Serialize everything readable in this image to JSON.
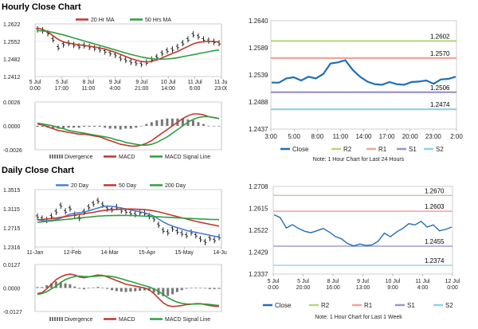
{
  "sections": {
    "hourly": "Hourly Close Chart",
    "daily": "Daily Close Chart"
  },
  "colors": {
    "ma_fast": "#c0392b",
    "ma_slow": "#2e9e3e",
    "ma20": "#4b7fcf",
    "ma50": "#c0392b",
    "ma200": "#2e9e3e",
    "price": "#111111",
    "close": "#1f6fb2",
    "r2": "#b5d77a",
    "r1": "#f2a39a",
    "s1": "#9b94c9",
    "s2": "#8fd0e8",
    "divergence": "#777777",
    "macd": "#c0392b",
    "signal": "#2e9e3e"
  },
  "chart_data": [
    {
      "id": "hourly_price",
      "type": "line",
      "legend": [
        "20 Hr MA",
        "50 Hrs MA"
      ],
      "ylim": [
        1.2412,
        1.2622
      ],
      "yticks": [
        "1.2622",
        "1.2552",
        "1.2482",
        "1.2412"
      ],
      "xticks": [
        "5 Jul\n0:00",
        "5 Jul\n17:00",
        "8 Jul\n11:00",
        "9 Jul\n4:00",
        "9 Jul\n21:00",
        "10 Jul\n14:00",
        "11 Jul\n6:00",
        "11 Jul\n23:00"
      ],
      "price": [
        1.26,
        1.2596,
        1.2585,
        1.256,
        1.2528,
        1.254,
        1.2545,
        1.2538,
        1.2532,
        1.2536,
        1.253,
        1.2525,
        1.252,
        1.2512,
        1.2505,
        1.2498,
        1.2485,
        1.2478,
        1.247,
        1.2466,
        1.2462,
        1.2468,
        1.248,
        1.249,
        1.2505,
        1.2515,
        1.252,
        1.253,
        1.2545,
        1.256,
        1.258,
        1.2572,
        1.256,
        1.2555,
        1.255,
        1.2545
      ],
      "series": [
        {
          "name": "20 Hr MA",
          "values": [
            1.2605,
            1.26,
            1.259,
            1.2575,
            1.256,
            1.255,
            1.2545,
            1.2542,
            1.2538,
            1.2536,
            1.2533,
            1.253,
            1.2526,
            1.2521,
            1.2515,
            1.2508,
            1.25,
            1.2492,
            1.2484,
            1.2477,
            1.2472,
            1.247,
            1.2472,
            1.2478,
            1.2486,
            1.2495,
            1.2504,
            1.2512,
            1.2522,
            1.2532,
            1.2542,
            1.2548,
            1.2551,
            1.2552,
            1.2551,
            1.255
          ]
        },
        {
          "name": "50 Hrs MA",
          "values": [
            1.2595,
            1.2594,
            1.2592,
            1.2588,
            1.2583,
            1.2578,
            1.2572,
            1.2566,
            1.256,
            1.2554,
            1.2548,
            1.2542,
            1.2536,
            1.253,
            1.2524,
            1.2518,
            1.2512,
            1.2506,
            1.25,
            1.2495,
            1.249,
            1.2486,
            1.2483,
            1.2481,
            1.2481,
            1.2482,
            1.2484,
            1.2487,
            1.2491,
            1.2495,
            1.2499,
            1.2503,
            1.2507,
            1.2511,
            1.2515,
            1.2518
          ]
        }
      ]
    },
    {
      "id": "hourly_macd",
      "type": "line",
      "legend": [
        "Divergence",
        "MACD",
        "MACD Signal Line"
      ],
      "ylim": [
        -0.0026,
        0.0026
      ],
      "yticks": [
        "0.0026",
        "0.0000",
        "-0.0026"
      ],
      "series": [
        {
          "name": "MACD",
          "values": [
            0.0002,
            0.0001,
            -0.0001,
            -0.0003,
            -0.0005,
            -0.0006,
            -0.0007,
            -0.0008,
            -0.0009,
            -0.0009,
            -0.001,
            -0.0011,
            -0.0012,
            -0.0014,
            -0.0016,
            -0.0018,
            -0.002,
            -0.0021,
            -0.0022,
            -0.0022,
            -0.0021,
            -0.0019,
            -0.0016,
            -0.0012,
            -0.0008,
            -0.0004,
            0.0,
            0.0004,
            0.0008,
            0.0011,
            0.0013,
            0.0013,
            0.0012,
            0.001,
            0.0009,
            0.0008
          ]
        },
        {
          "name": "MACD Signal Line",
          "values": [
            0.0003,
            0.0002,
            0.0001,
            0.0,
            -0.0002,
            -0.0003,
            -0.0005,
            -0.0006,
            -0.0007,
            -0.0008,
            -0.0009,
            -0.001,
            -0.0011,
            -0.0012,
            -0.0013,
            -0.0015,
            -0.0016,
            -0.0018,
            -0.0019,
            -0.002,
            -0.0021,
            -0.0021,
            -0.002,
            -0.0018,
            -0.0015,
            -0.0012,
            -0.0008,
            -0.0004,
            0.0,
            0.0004,
            0.0007,
            0.0009,
            0.001,
            0.001,
            0.0009,
            0.0008
          ]
        },
        {
          "name": "Divergence",
          "values": [
            -0.0001,
            -0.0001,
            -0.0002,
            -0.0003,
            -0.0003,
            -0.0003,
            -0.0002,
            -0.0002,
            -0.0002,
            -0.0001,
            -0.0001,
            -0.0001,
            -0.0001,
            -0.0002,
            -0.0003,
            -0.0003,
            -0.0004,
            -0.0003,
            -0.0003,
            -0.0002,
            0.0,
            0.0002,
            0.0004,
            0.0006,
            0.0007,
            0.0008,
            0.0008,
            0.0008,
            0.0008,
            0.0007,
            0.0006,
            0.0004,
            0.0002,
            0.0,
            0.0,
            0.0
          ]
        }
      ]
    },
    {
      "id": "hourly_levels",
      "type": "line",
      "ylim": [
        1.2437,
        1.264
      ],
      "yticks": [
        "1.2640",
        "1.2589",
        "1.2539",
        "1.2488",
        "1.2437"
      ],
      "xticks": [
        "3:00",
        "5:00",
        "8:00",
        "11:00",
        "14:00",
        "17:00",
        "20:00",
        "23:00",
        "2:00"
      ],
      "legend": [
        "Close",
        "R2",
        "R1",
        "S1",
        "S2"
      ],
      "levels": [
        {
          "name": "R2",
          "value": 1.2602,
          "label": "1.2602"
        },
        {
          "name": "R1",
          "value": 1.257,
          "label": "1.2570"
        },
        {
          "name": "S1",
          "value": 1.2506,
          "label": "1.2506"
        },
        {
          "name": "S2",
          "value": 1.2474,
          "label": "1.2474"
        }
      ],
      "series": [
        {
          "name": "Close",
          "values": [
            1.2524,
            1.2524,
            1.2532,
            1.2534,
            1.2528,
            1.2535,
            1.2532,
            1.254,
            1.256,
            1.2562,
            1.2566,
            1.2548,
            1.2535,
            1.2526,
            1.2521,
            1.252,
            1.2525,
            1.2521,
            1.252,
            1.2525,
            1.2526,
            1.2528,
            1.2522,
            1.253,
            1.2531,
            1.2535
          ]
        }
      ],
      "note": "Note: 1 Hour Chart for Last 24 Hours"
    },
    {
      "id": "daily_price",
      "type": "line",
      "legend": [
        "20 Day",
        "50 Day",
        "200 Day"
      ],
      "ylim": [
        1.2316,
        1.3515
      ],
      "yticks": [
        "1.3515",
        "1.3115",
        "1.2715",
        "1.2316"
      ],
      "xticks": [
        "11-Jan",
        "12-Feb",
        "14-Mar",
        "15-Apr",
        "15-May",
        "14-Jun"
      ],
      "price": [
        1.295,
        1.291,
        1.288,
        1.296,
        1.305,
        1.318,
        1.306,
        1.312,
        1.299,
        1.292,
        1.305,
        1.315,
        1.322,
        1.328,
        1.32,
        1.312,
        1.31,
        1.315,
        1.308,
        1.306,
        1.302,
        1.3,
        1.304,
        1.302,
        1.296,
        1.29,
        1.278,
        1.266,
        1.262,
        1.27,
        1.264,
        1.26,
        1.256,
        1.262,
        1.256,
        1.248,
        1.242,
        1.25,
        1.246,
        1.252
      ],
      "series": [
        {
          "name": "20 Day",
          "values": [
            1.288,
            1.287,
            1.286,
            1.287,
            1.289,
            1.292,
            1.296,
            1.3,
            1.302,
            1.303,
            1.305,
            1.307,
            1.31,
            1.313,
            1.316,
            1.317,
            1.3165,
            1.315,
            1.313,
            1.311,
            1.309,
            1.307,
            1.305,
            1.303,
            1.3,
            1.296,
            1.29,
            1.284,
            1.279,
            1.275,
            1.272,
            1.269,
            1.266,
            1.264,
            1.262,
            1.26,
            1.258,
            1.256,
            1.254,
            1.252
          ]
        },
        {
          "name": "50 Day",
          "values": [
            1.288,
            1.289,
            1.29,
            1.291,
            1.292,
            1.2935,
            1.295,
            1.2965,
            1.298,
            1.2995,
            1.301,
            1.3025,
            1.304,
            1.306,
            1.3075,
            1.3085,
            1.3095,
            1.31,
            1.3105,
            1.3108,
            1.311,
            1.3105,
            1.31,
            1.3095,
            1.3085,
            1.307,
            1.305,
            1.3025,
            1.3,
            1.2975,
            1.295,
            1.2925,
            1.29,
            1.2875,
            1.285,
            1.283,
            1.281,
            1.279,
            1.277,
            1.275
          ]
        },
        {
          "name": "200 Day",
          "values": [
            1.283,
            1.284,
            1.285,
            1.286,
            1.287,
            1.288,
            1.289,
            1.29,
            1.291,
            1.292,
            1.293,
            1.294,
            1.295,
            1.296,
            1.2965,
            1.297,
            1.2972,
            1.2975,
            1.2975,
            1.2975,
            1.2973,
            1.297,
            1.2965,
            1.296,
            1.2955,
            1.295,
            1.2945,
            1.294,
            1.2935,
            1.293,
            1.2925,
            1.292,
            1.2915,
            1.291,
            1.2905,
            1.29,
            1.2897,
            1.2893,
            1.289,
            1.2887
          ]
        }
      ]
    },
    {
      "id": "daily_macd",
      "type": "line",
      "legend": [
        "Divergence",
        "MACD",
        "MACD Signal Line"
      ],
      "ylim": [
        -0.0127,
        0.0127
      ],
      "yticks": [
        "0.0127",
        "0.0000",
        "-0.0127"
      ],
      "series": [
        {
          "name": "MACD",
          "values": [
            -0.003,
            -0.0025,
            -0.0005,
            0.002,
            0.0045,
            0.006,
            0.007,
            0.0075,
            0.007,
            0.006,
            0.0055,
            0.006,
            0.0065,
            0.007,
            0.0068,
            0.006,
            0.005,
            0.004,
            0.003,
            0.002,
            0.0015,
            0.001,
            0.0005,
            0.0,
            -0.001,
            -0.003,
            -0.0055,
            -0.008,
            -0.0095,
            -0.01,
            -0.0098,
            -0.0095,
            -0.009,
            -0.0088,
            -0.0085,
            -0.0085,
            -0.009,
            -0.0095,
            -0.0098,
            -0.01
          ]
        },
        {
          "name": "MACD Signal Line",
          "values": [
            -0.0035,
            -0.003,
            -0.002,
            -0.0005,
            0.001,
            0.003,
            0.0045,
            0.0055,
            0.0062,
            0.0064,
            0.0062,
            0.0061,
            0.0062,
            0.0064,
            0.0066,
            0.0065,
            0.0062,
            0.0057,
            0.005,
            0.0042,
            0.0035,
            0.0028,
            0.002,
            0.0013,
            0.0005,
            -0.0005,
            -0.0018,
            -0.0035,
            -0.0052,
            -0.0066,
            -0.0076,
            -0.0083,
            -0.0086,
            -0.0087,
            -0.0087,
            -0.0086,
            -0.0087,
            -0.0089,
            -0.0092,
            -0.0095
          ]
        },
        {
          "name": "Divergence",
          "values": [
            0.0005,
            0.0005,
            0.0015,
            0.0025,
            0.0035,
            0.003,
            0.0025,
            0.002,
            0.0008,
            -0.0004,
            -0.0007,
            -0.0001,
            0.0003,
            0.0006,
            0.0002,
            -0.0005,
            -0.0012,
            -0.0017,
            -0.002,
            -0.0022,
            -0.002,
            -0.0018,
            -0.0015,
            -0.0013,
            -0.0015,
            -0.0025,
            -0.0037,
            -0.0045,
            -0.0043,
            -0.0034,
            -0.0022,
            -0.0012,
            -0.0004,
            -0.0001,
            0.0002,
            0.0001,
            -0.0003,
            -0.0006,
            -0.0006,
            -0.0005
          ]
        }
      ]
    },
    {
      "id": "daily_levels",
      "type": "line",
      "ylim": [
        1.2337,
        1.2708
      ],
      "yticks": [
        "1.2708",
        "1.2615",
        "1.2522",
        "1.2429",
        "1.2337"
      ],
      "xticks": [
        "5 Jul\n0:00",
        "5 Jul\n20:00",
        "8 Jul\n16:00",
        "9 Jul\n13:00",
        "10 Jul\n9:00",
        "11 Jul\n4:00",
        "12 Jul\n0:00"
      ],
      "legend": [
        "Close",
        "R2",
        "R1",
        "S1",
        "S2"
      ],
      "levels": [
        {
          "name": "R2",
          "value": 1.267,
          "label": "1.2670"
        },
        {
          "name": "R1",
          "value": 1.2603,
          "label": "1.2603"
        },
        {
          "name": "S1",
          "value": 1.2455,
          "label": "1.2455"
        },
        {
          "name": "S2",
          "value": 1.2374,
          "label": "1.2374"
        }
      ],
      "series": [
        {
          "name": "Close",
          "values": [
            1.2588,
            1.2576,
            1.2532,
            1.2546,
            1.253,
            1.2518,
            1.2512,
            1.252,
            1.253,
            1.2515,
            1.2496,
            1.2486,
            1.2466,
            1.2456,
            1.2464,
            1.2458,
            1.246,
            1.2476,
            1.251,
            1.2495,
            1.2515,
            1.253,
            1.255,
            1.2545,
            1.256,
            1.2536,
            1.2545,
            1.252,
            1.2526,
            1.2536
          ]
        }
      ],
      "note": "Note: 1 Hour Chart for Last 1 Week"
    }
  ]
}
